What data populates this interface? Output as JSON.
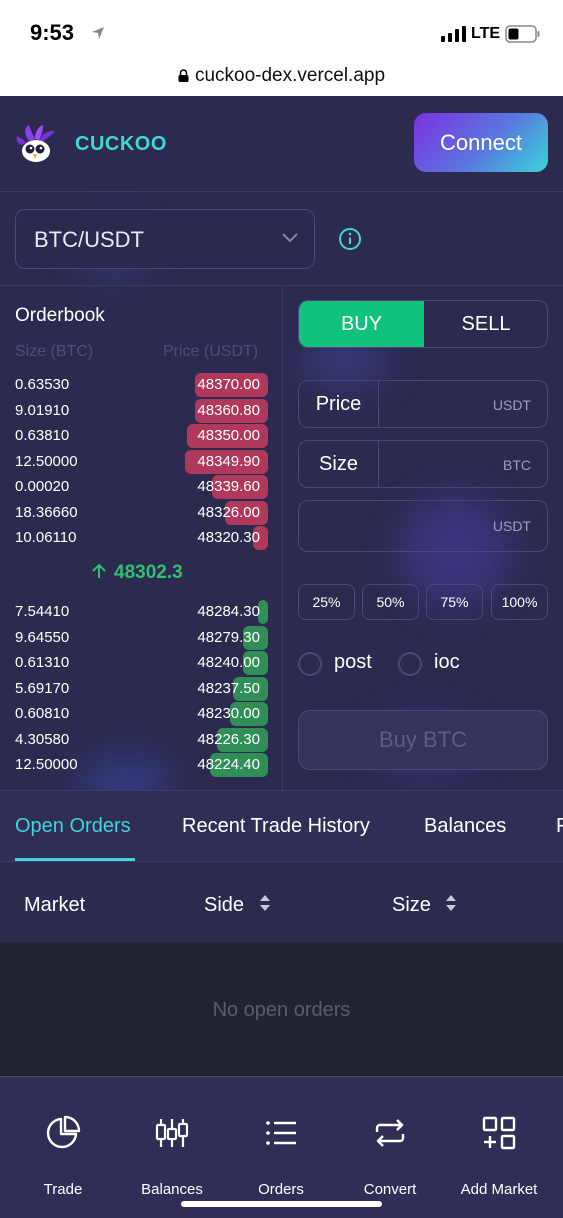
{
  "status_bar": {
    "time": "9:53",
    "network": "LTE"
  },
  "browser": {
    "url": "cuckoo-dex.vercel.app"
  },
  "header": {
    "brand": "CUCKOO",
    "connect_label": "Connect"
  },
  "market": {
    "selected": "BTC/USDT"
  },
  "orderbook": {
    "title": "Orderbook",
    "size_header": "Size (BTC)",
    "price_header": "Price (USDT)",
    "asks": [
      {
        "size": "0.63530",
        "price": "48370.00",
        "depth": 0.29
      },
      {
        "size": "9.01910",
        "price": "48360.80",
        "depth": 0.29
      },
      {
        "size": "0.63810",
        "price": "48350.00",
        "depth": 0.32
      },
      {
        "size": "12.50000",
        "price": "48349.90",
        "depth": 0.33
      },
      {
        "size": "0.00020",
        "price": "48339.60",
        "depth": 0.22
      },
      {
        "size": "18.36660",
        "price": "48326.00",
        "depth": 0.17
      },
      {
        "size": "10.06110",
        "price": "48320.30",
        "depth": 0.06
      }
    ],
    "last_price": "48302.3",
    "bids": [
      {
        "size": "7.54410",
        "price": "48284.30",
        "depth": 0.04
      },
      {
        "size": "9.64550",
        "price": "48279.30",
        "depth": 0.1
      },
      {
        "size": "0.61310",
        "price": "48240.00",
        "depth": 0.1
      },
      {
        "size": "5.69170",
        "price": "48237.50",
        "depth": 0.14
      },
      {
        "size": "0.60810",
        "price": "48230.00",
        "depth": 0.15
      },
      {
        "size": "4.30580",
        "price": "48226.30",
        "depth": 0.2
      },
      {
        "size": "12.50000",
        "price": "48224.40",
        "depth": 0.23
      }
    ]
  },
  "order_form": {
    "buy_label": "BUY",
    "sell_label": "SELL",
    "price_label": "Price",
    "price_unit": "USDT",
    "size_label": "Size",
    "size_unit": "BTC",
    "total_unit": "USDT",
    "percents": [
      "25%",
      "50%",
      "75%",
      "100%"
    ],
    "post_label": "post",
    "ioc_label": "ioc",
    "submit_label": "Buy BTC"
  },
  "tabs": [
    "Open Orders",
    "Recent Trade History",
    "Balances",
    "F"
  ],
  "orders_table": {
    "headers": [
      "Market",
      "Side",
      "Size"
    ],
    "empty_message": "No open orders"
  },
  "bottom_nav": [
    {
      "label": "Trade",
      "icon": "pie-chart-icon"
    },
    {
      "label": "Balances",
      "icon": "candlestick-icon"
    },
    {
      "label": "Orders",
      "icon": "list-icon"
    },
    {
      "label": "Convert",
      "icon": "repeat-icon"
    },
    {
      "label": "Add Market",
      "icon": "add-grid-icon"
    }
  ],
  "colors": {
    "background": "#2c2a4f",
    "accent": "#3fd6d6",
    "buy": "#11c27d",
    "ask_bar": "#b0385d",
    "bid_bar": "#2f8f57"
  }
}
